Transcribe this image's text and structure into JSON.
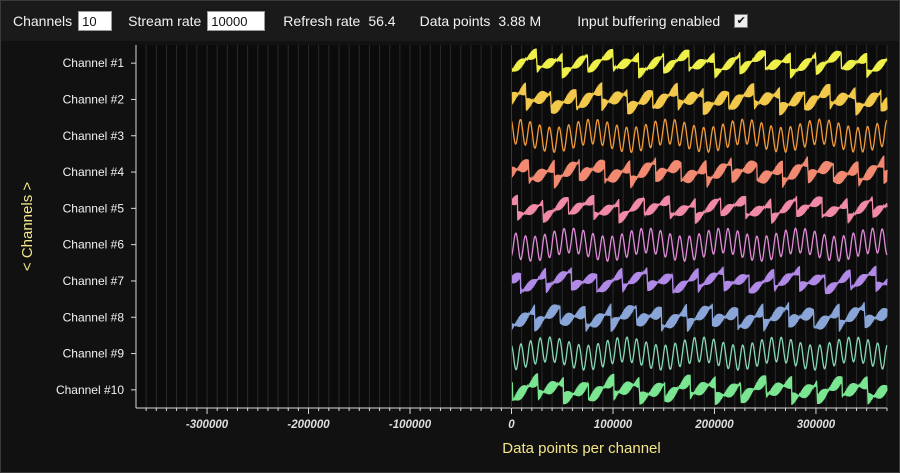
{
  "toolbar": {
    "channels_label": "Channels",
    "channels_value": "10",
    "stream_rate_label": "Stream rate",
    "stream_rate_value": "10000",
    "refresh_rate_label": "Refresh rate",
    "refresh_rate_value": "56.4",
    "data_points_label": "Data points",
    "data_points_value": "3.88 M",
    "input_buffering_label": "Input buffering enabled",
    "input_buffering_checked": true
  },
  "chart_data": {
    "type": "line",
    "xlabel": "Data points per channel",
    "ylabel": "< Channels >",
    "xlim": [
      -370000,
      370000
    ],
    "x_ticks": [
      "-300000",
      "-200000",
      "-100000",
      "0",
      "100000",
      "200000",
      "300000"
    ],
    "x_tick_values": [
      -300000,
      -200000,
      -100000,
      0,
      100000,
      200000,
      300000
    ],
    "data_x_range": [
      0,
      370000
    ],
    "grid": true,
    "series": [
      {
        "name": "Channel #1",
        "color": "#f0f04a"
      },
      {
        "name": "Channel #2",
        "color": "#f2c94a"
      },
      {
        "name": "Channel #3",
        "color": "#f29a3a"
      },
      {
        "name": "Channel #4",
        "color": "#f28a72"
      },
      {
        "name": "Channel #5",
        "color": "#f08aa6"
      },
      {
        "name": "Channel #6",
        "color": "#e08ad8"
      },
      {
        "name": "Channel #7",
        "color": "#b08ae6"
      },
      {
        "name": "Channel #8",
        "color": "#8aa6d8"
      },
      {
        "name": "Channel #9",
        "color": "#86d8b2"
      },
      {
        "name": "Channel #10",
        "color": "#7ae692"
      }
    ]
  }
}
